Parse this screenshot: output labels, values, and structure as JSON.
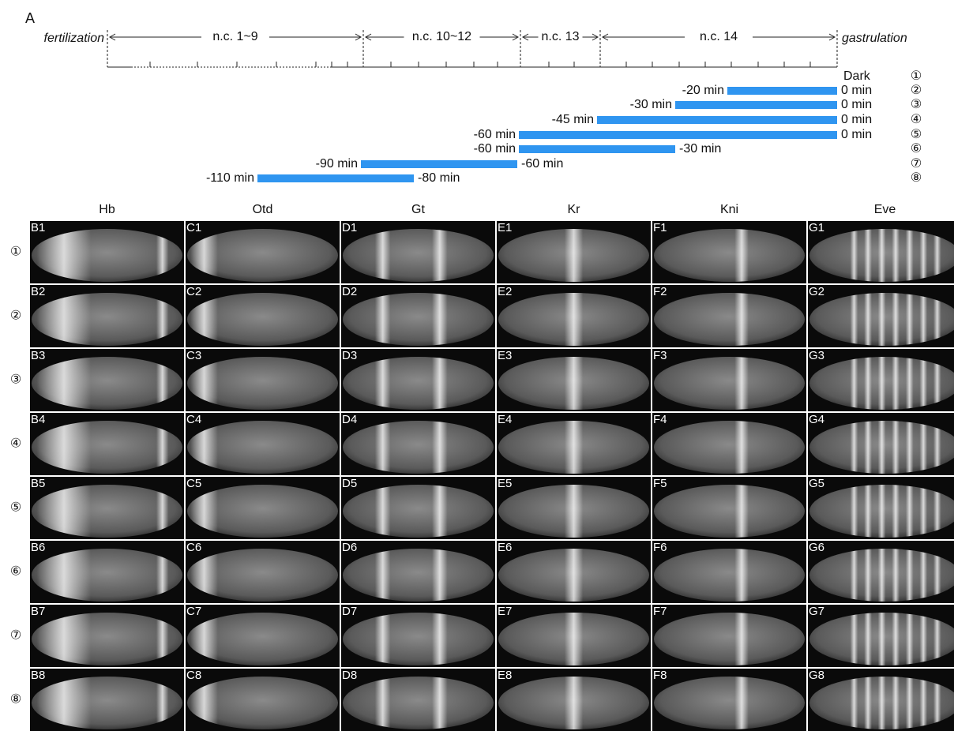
{
  "label": "A",
  "timeline": {
    "start": "fertilization",
    "end": "gastrulation",
    "phases": [
      "n.c. 1~9",
      "n.c. 10~12",
      "n.c. 13",
      "n.c. 14"
    ]
  },
  "conditions": [
    {
      "marker": "①",
      "start": "Dark"
    },
    {
      "marker": "②",
      "start": "-20 min",
      "end": "0 min"
    },
    {
      "marker": "③",
      "start": "-30 min",
      "end": "0 min"
    },
    {
      "marker": "④",
      "start": "-45 min",
      "end": "0 min"
    },
    {
      "marker": "⑤",
      "start": "-60 min",
      "end": "0 min"
    },
    {
      "marker": "⑥",
      "start": "-60 min",
      "end": "-30 min"
    },
    {
      "marker": "⑦",
      "start": "-90 min",
      "end": "-60 min"
    },
    {
      "marker": "⑧",
      "start": "-110 min",
      "end": "-80 min"
    }
  ],
  "columns": [
    "Hb",
    "Otd",
    "Gt",
    "Kr",
    "Kni",
    "Eve"
  ],
  "panels": [
    [
      "B1",
      "C1",
      "D1",
      "E1",
      "F1",
      "G1"
    ],
    [
      "B2",
      "C2",
      "D2",
      "E2",
      "F2",
      "G2"
    ],
    [
      "B3",
      "C3",
      "D3",
      "E3",
      "F3",
      "G3"
    ],
    [
      "B4",
      "C4",
      "D4",
      "E4",
      "F4",
      "G4"
    ],
    [
      "B5",
      "C5",
      "D5",
      "E5",
      "F5",
      "G5"
    ],
    [
      "B6",
      "C6",
      "D6",
      "E6",
      "F6",
      "G6"
    ],
    [
      "B7",
      "C7",
      "D7",
      "E7",
      "F7",
      "G7"
    ],
    [
      "B8",
      "C8",
      "D8",
      "E8",
      "F8",
      "G8"
    ]
  ]
}
